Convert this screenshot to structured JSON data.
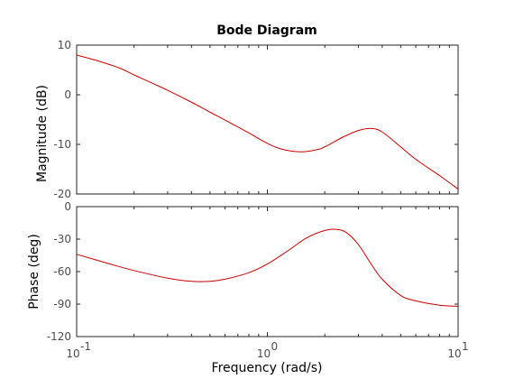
{
  "chart_data": {
    "type": "line",
    "title": "Bode Diagram",
    "xlabel": "Frequency  (rad/s)",
    "xscale": "log",
    "xlim": [
      0.1,
      10
    ],
    "x_ticks": [
      0.1,
      1,
      10
    ],
    "x_tick_labels": [
      "10",
      "10",
      "10"
    ],
    "x_tick_exponents": [
      "-1",
      "0",
      "1"
    ],
    "line_color": "#cc0000",
    "axis_color": "#262626",
    "tick_label_color": "#4d4d4d",
    "grid": false,
    "subplots": [
      {
        "name": "magnitude",
        "ylabel": "Magnitude (dB)",
        "ylim": [
          -20,
          10
        ],
        "yticks": [
          -20,
          -10,
          0,
          10
        ],
        "x": [
          0.1,
          0.13,
          0.17,
          0.2,
          0.25,
          0.3,
          0.4,
          0.5,
          0.6,
          0.8,
          1.0,
          1.2,
          1.5,
          1.8,
          2.0,
          2.5,
          3.0,
          3.5,
          4.0,
          5.0,
          6.0,
          8.0,
          10.0
        ],
        "y": [
          8.0,
          6.8,
          5.3,
          4.0,
          2.3,
          0.9,
          -1.5,
          -3.5,
          -5.1,
          -7.7,
          -9.8,
          -11.0,
          -11.5,
          -11.1,
          -10.5,
          -8.5,
          -7.2,
          -6.8,
          -7.5,
          -10.5,
          -13.0,
          -16.3,
          -19.0
        ]
      },
      {
        "name": "phase",
        "ylabel": "Phase (deg)",
        "ylim": [
          -120,
          0
        ],
        "yticks": [
          -120,
          -90,
          -60,
          -30,
          0
        ],
        "x": [
          0.1,
          0.15,
          0.2,
          0.3,
          0.4,
          0.5,
          0.6,
          0.8,
          1.0,
          1.3,
          1.6,
          2.0,
          2.3,
          2.6,
          3.0,
          3.5,
          4.0,
          5.0,
          6.0,
          8.0,
          10.0
        ],
        "y": [
          -44,
          -53,
          -59,
          -66,
          -69,
          -69,
          -67,
          -61,
          -53,
          -40,
          -29,
          -22,
          -21,
          -24,
          -35,
          -53,
          -67,
          -82,
          -87,
          -91,
          -92
        ]
      }
    ]
  }
}
